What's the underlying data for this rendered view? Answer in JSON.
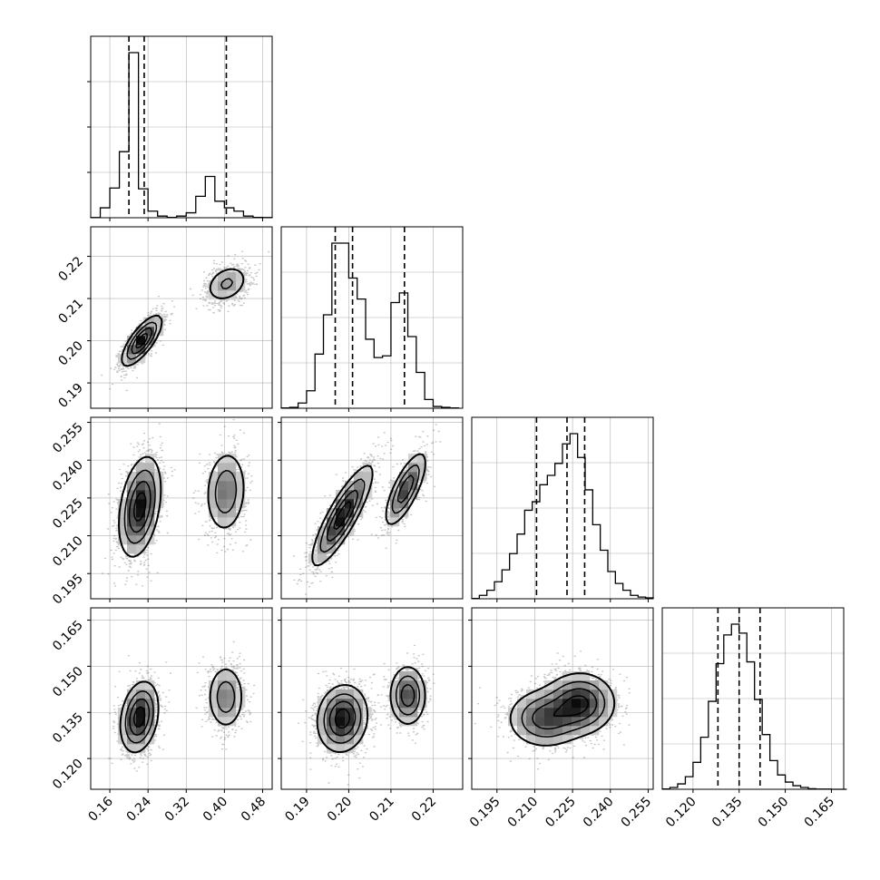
{
  "chart_data": {
    "type": "corner",
    "parameters": 4,
    "axes": [
      {
        "range": [
          0.12,
          0.5
        ],
        "ticks": [
          0.16,
          0.24,
          0.32,
          0.4,
          0.48
        ],
        "tick_labels": [
          "0.16",
          "0.24",
          "0.32",
          "0.40",
          "0.48"
        ]
      },
      {
        "range": [
          0.184,
          0.227
        ],
        "ticks": [
          0.19,
          0.2,
          0.21,
          0.22
        ],
        "tick_labels": [
          "0.19",
          "0.20",
          "0.21",
          "0.22"
        ]
      },
      {
        "range": [
          0.185,
          0.257
        ],
        "ticks": [
          0.195,
          0.21,
          0.225,
          0.24,
          0.255
        ],
        "tick_labels": [
          "0.195",
          "0.210",
          "0.225",
          "0.240",
          "0.255"
        ]
      },
      {
        "range": [
          0.11,
          0.169
        ],
        "ticks": [
          0.12,
          0.135,
          0.15,
          0.165
        ],
        "tick_labels": [
          "0.120",
          "0.135",
          "0.150",
          "0.165"
        ]
      }
    ],
    "histograms": [
      {
        "bins": [
          0.12,
          0.14,
          0.16,
          0.18,
          0.2,
          0.22,
          0.24,
          0.26,
          0.28,
          0.3,
          0.32,
          0.34,
          0.36,
          0.38,
          0.4,
          0.42,
          0.44,
          0.46,
          0.48,
          0.5
        ],
        "counts": [
          1,
          60,
          180,
          400,
          1000,
          175,
          40,
          10,
          2,
          10,
          30,
          130,
          250,
          100,
          60,
          40,
          10,
          2,
          1
        ],
        "quantile_lines": [
          0.2,
          0.232,
          0.404
        ]
      },
      {
        "bins": [
          0.184,
          0.186,
          0.188,
          0.19,
          0.192,
          0.194,
          0.196,
          0.198,
          0.2,
          0.202,
          0.204,
          0.206,
          0.208,
          0.21,
          0.212,
          0.214,
          0.216,
          0.218,
          0.22,
          0.222,
          0.224,
          0.226
        ],
        "counts": [
          2,
          5,
          30,
          100,
          310,
          535,
          945,
          945,
          745,
          625,
          395,
          290,
          300,
          605,
          660,
          410,
          205,
          50,
          10,
          5,
          2
        ],
        "quantile_lines": [
          0.1968,
          0.2009,
          0.2132
        ]
      },
      {
        "bins": [
          0.185,
          0.188,
          0.191,
          0.194,
          0.197,
          0.2,
          0.203,
          0.206,
          0.209,
          0.212,
          0.215,
          0.218,
          0.221,
          0.224,
          0.227,
          0.23,
          0.233,
          0.236,
          0.239,
          0.242,
          0.245,
          0.248,
          0.251,
          0.254,
          0.257
        ],
        "counts": [
          2,
          20,
          50,
          100,
          170,
          265,
          380,
          520,
          570,
          670,
          725,
          795,
          910,
          970,
          830,
          640,
          435,
          285,
          160,
          90,
          50,
          20,
          10,
          5
        ],
        "quantile_lines": [
          0.2107,
          0.2228,
          0.2298
        ]
      },
      {
        "bins": [
          0.11,
          0.1125,
          0.115,
          0.1175,
          0.12,
          0.1225,
          0.125,
          0.1275,
          0.13,
          0.1325,
          0.135,
          0.1375,
          0.14,
          0.1425,
          0.145,
          0.1475,
          0.15,
          0.1525,
          0.155,
          0.1575,
          0.16,
          0.1625,
          0.165,
          0.1675,
          0.17
        ],
        "counts": [
          2,
          10,
          30,
          70,
          150,
          290,
          490,
          700,
          860,
          920,
          870,
          710,
          500,
          305,
          160,
          80,
          40,
          20,
          10,
          3,
          1,
          1,
          0,
          0
        ],
        "quantile_lines": [
          0.1281,
          0.135,
          0.1418
        ]
      }
    ],
    "correlation": {
      "1_0": {
        "modes": [
          {
            "center": [
              0.227,
              0.2
            ],
            "sigma": [
              0.021,
              0.003
            ],
            "rho": 0.75,
            "weight": 0.66
          },
          {
            "center": [
              0.405,
              0.2135
            ],
            "sigma": [
              0.024,
              0.0024
            ],
            "rho": 0.3,
            "weight": 0.34
          }
        ]
      },
      "2_0": {
        "modes": [
          {
            "center": [
              0.223,
              0.2215
            ],
            "sigma": [
              0.022,
              0.01
            ],
            "rho": 0.35,
            "weight": 0.66
          },
          {
            "center": [
              0.403,
              0.2275
            ],
            "sigma": [
              0.022,
              0.0085
            ],
            "rho": 0.1,
            "weight": 0.34
          }
        ]
      },
      "2_1": {
        "modes": [
          {
            "center": [
              0.1985,
              0.218
            ],
            "sigma": [
              0.0036,
              0.01
            ],
            "rho": 0.85,
            "weight": 0.66
          },
          {
            "center": [
              0.2135,
              0.2285
            ],
            "sigma": [
              0.0025,
              0.0075
            ],
            "rho": 0.75,
            "weight": 0.34
          }
        ]
      },
      "3_0": {
        "modes": [
          {
            "center": [
              0.222,
              0.1335
            ],
            "sigma": [
              0.02,
              0.0058
            ],
            "rho": 0.25,
            "weight": 0.66
          },
          {
            "center": [
              0.403,
              0.14
            ],
            "sigma": [
              0.02,
              0.0055
            ],
            "rho": 0.0,
            "weight": 0.34
          }
        ]
      },
      "3_1": {
        "modes": [
          {
            "center": [
              0.1985,
              0.133
            ],
            "sigma": [
              0.003,
              0.0055
            ],
            "rho": 0.1,
            "weight": 0.66
          },
          {
            "center": [
              0.214,
              0.1405
            ],
            "sigma": [
              0.0022,
              0.005
            ],
            "rho": 0.0,
            "weight": 0.34
          }
        ]
      },
      "3_2": {
        "modes": [
          {
            "center": [
              0.214,
              0.133
            ],
            "sigma": [
              0.0075,
              0.0048
            ],
            "rho": 0.0,
            "weight": 0.45
          },
          {
            "center": [
              0.228,
              0.138
            ],
            "sigma": [
              0.007,
              0.005
            ],
            "rho": 0.0,
            "weight": 0.55
          }
        ]
      }
    },
    "title": "",
    "xlabel": "",
    "ylabel": "",
    "grid": true,
    "colors": {
      "ink": "#000000",
      "grid": "#b0b0b0",
      "points": "#000000"
    }
  }
}
